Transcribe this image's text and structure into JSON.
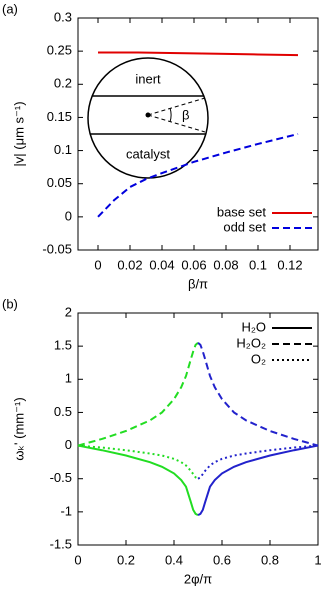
{
  "chart_data": [
    {
      "type": "line",
      "panel_label": "(a)",
      "x_label": "β/π",
      "y_label": "|v| (μm s⁻¹)",
      "xlim": [
        -0.0125,
        0.1375
      ],
      "xticks": [
        0,
        0.02,
        0.04,
        0.06,
        0.08,
        0.1,
        0.12
      ],
      "ylim": [
        -0.05,
        0.3
      ],
      "yticks": [
        -0.05,
        0,
        0.05,
        0.1,
        0.15,
        0.2,
        0.25,
        0.3
      ],
      "legend": "lower right",
      "inset_labels": {
        "top": "inert",
        "bottom": "catalyst",
        "angle": "β"
      },
      "series": [
        {
          "name": "base set",
          "color": "#e00000",
          "dash": "solid",
          "x": [
            0,
            0.025,
            0.05,
            0.075,
            0.1,
            0.125
          ],
          "values": [
            0.248,
            0.248,
            0.247,
            0.246,
            0.245,
            0.244
          ]
        },
        {
          "name": "odd set",
          "color": "#0000dd",
          "dash": "dashed",
          "x": [
            0,
            0.01,
            0.02,
            0.03,
            0.04,
            0.06,
            0.08,
            0.1,
            0.125
          ],
          "values": [
            0,
            0.025,
            0.045,
            0.057,
            0.066,
            0.083,
            0.097,
            0.11,
            0.125
          ]
        }
      ]
    },
    {
      "type": "line",
      "panel_label": "(b)",
      "x_label": "2φ/π",
      "y_label": "ωₖ' (mm⁻¹)",
      "xlim": [
        0,
        1
      ],
      "xticks": [
        0,
        0.2,
        0.4,
        0.6,
        0.8,
        1
      ],
      "ylim": [
        -1.5,
        2
      ],
      "yticks": [
        -1.5,
        -1,
        -0.5,
        0,
        0.5,
        1,
        1.5,
        2
      ],
      "legend": "upper right",
      "colors": [
        "#22dd22",
        "#2222cc"
      ],
      "x": [
        0,
        0.1,
        0.2,
        0.3,
        0.35,
        0.4,
        0.43,
        0.45,
        0.47,
        0.48,
        0.49,
        0.5,
        0.51,
        0.52,
        0.53,
        0.55,
        0.57,
        0.6,
        0.65,
        0.7,
        0.8,
        0.9,
        1
      ],
      "series": [
        {
          "name": "H₂O",
          "color": "#000000",
          "dash": "solid",
          "values": [
            0,
            -0.07,
            -0.15,
            -0.25,
            -0.32,
            -0.42,
            -0.52,
            -0.62,
            -0.85,
            -0.97,
            -1.03,
            -1.05,
            -1.03,
            -0.97,
            -0.85,
            -0.62,
            -0.52,
            -0.42,
            -0.32,
            -0.25,
            -0.15,
            -0.07,
            0
          ]
        },
        {
          "name": "H₂O₂",
          "color": "#000000",
          "dash": "dashed",
          "values": [
            0,
            0.1,
            0.22,
            0.38,
            0.5,
            0.7,
            0.88,
            1.05,
            1.3,
            1.42,
            1.52,
            1.55,
            1.52,
            1.42,
            1.3,
            1.05,
            0.88,
            0.7,
            0.5,
            0.38,
            0.22,
            0.1,
            0
          ]
        },
        {
          "name": "O₂",
          "color": "#000000",
          "dash": "dotted",
          "values": [
            0,
            -0.03,
            -0.07,
            -0.12,
            -0.15,
            -0.2,
            -0.25,
            -0.3,
            -0.38,
            -0.43,
            -0.48,
            -0.5,
            -0.48,
            -0.43,
            -0.38,
            -0.3,
            -0.25,
            -0.2,
            -0.15,
            -0.12,
            -0.07,
            -0.03,
            0
          ]
        }
      ]
    }
  ]
}
